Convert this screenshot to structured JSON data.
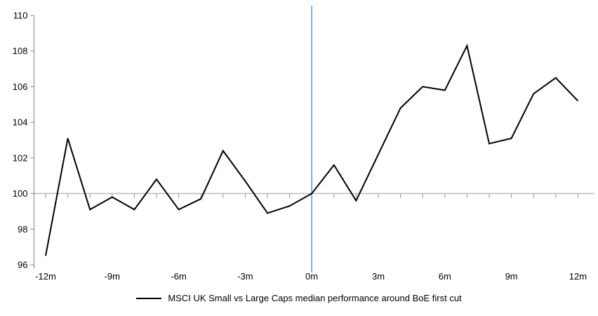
{
  "chart_data": {
    "type": "line",
    "x": [
      -12,
      -11,
      -10,
      -9,
      -8,
      -7,
      -6,
      -5,
      -4,
      -3,
      -2,
      -1,
      0,
      1,
      2,
      3,
      4,
      5,
      6,
      7,
      8,
      9,
      10,
      11,
      12
    ],
    "series": [
      {
        "name": "MSCI UK Small vs Large Caps median performance around BoE first cut",
        "values": [
          96.5,
          103.1,
          99.1,
          99.8,
          99.1,
          100.8,
          99.1,
          99.7,
          102.4,
          100.7,
          98.9,
          99.3,
          100.0,
          101.6,
          99.6,
          102.2,
          104.8,
          106.0,
          105.8,
          108.3,
          102.8,
          103.1,
          105.6,
          106.5,
          105.2
        ]
      }
    ],
    "x_tick_labels": [
      "-12m",
      "-9m",
      "-6m",
      "-3m",
      "0m",
      "3m",
      "6m",
      "9m",
      "12m"
    ],
    "x_tick_positions": [
      -12,
      -9,
      -6,
      -3,
      0,
      3,
      6,
      9,
      12
    ],
    "minor_x_tick_step": 1,
    "y_ticks": [
      96,
      98,
      100,
      102,
      104,
      106,
      108,
      110
    ],
    "ylim": [
      96,
      110
    ],
    "xlim": [
      -12,
      12
    ],
    "baseline_value": 100,
    "event_line_x": 0,
    "grid": "off",
    "legend_position": "bottom",
    "colors": {
      "series_line": "#000000",
      "event_line": "#5B9BD5",
      "baseline": "#BFBFBF",
      "axis": "#969696",
      "tick": "#969696",
      "text": "#000000",
      "background": "#FFFFFF"
    }
  }
}
